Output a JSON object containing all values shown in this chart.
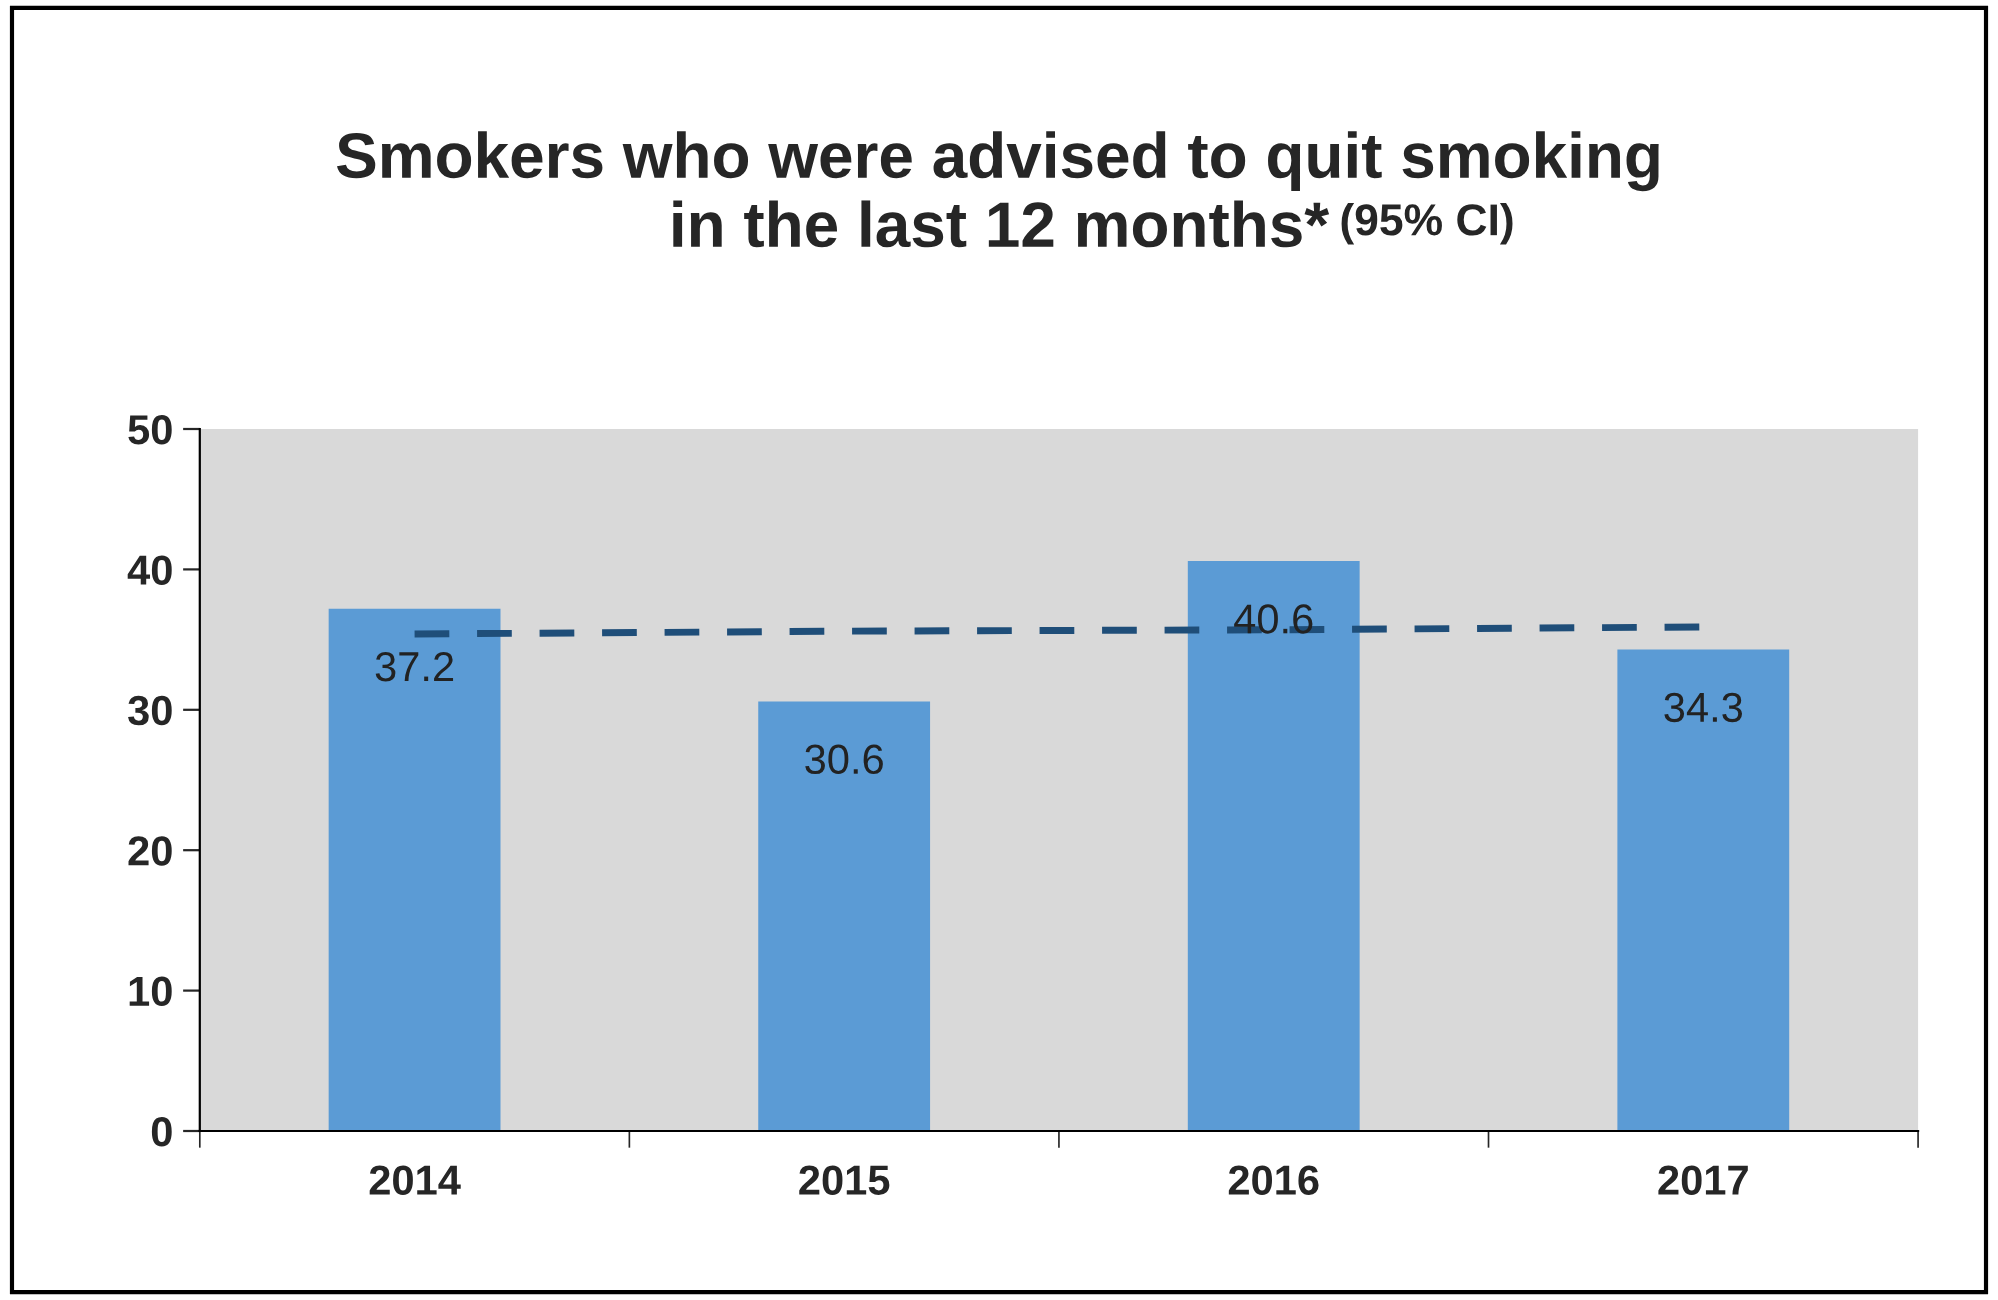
{
  "chart_data": {
    "type": "bar",
    "title": "Smokers who were advised to quit smoking\nin the last 12 months*",
    "subtitle": "(95% CI)",
    "categories": [
      "2014",
      "2015",
      "2016",
      "2017"
    ],
    "series": [
      {
        "color": "#5b9bd5",
        "values": [
          37.2,
          30.6,
          40.6,
          34.3
        ],
        "value_labels": [
          "37.2",
          "30.6",
          "40.6",
          "34.3"
        ]
      },
      {
        "type": "line",
        "color": "#1f4e79",
        "line_style": "dashed",
        "values": [
          35.4,
          35.6,
          35.7,
          35.9
        ]
      }
    ],
    "ylim": [
      0,
      50
    ],
    "yticks": [
      0,
      10,
      20,
      30,
      40,
      50
    ],
    "grid": false
  }
}
